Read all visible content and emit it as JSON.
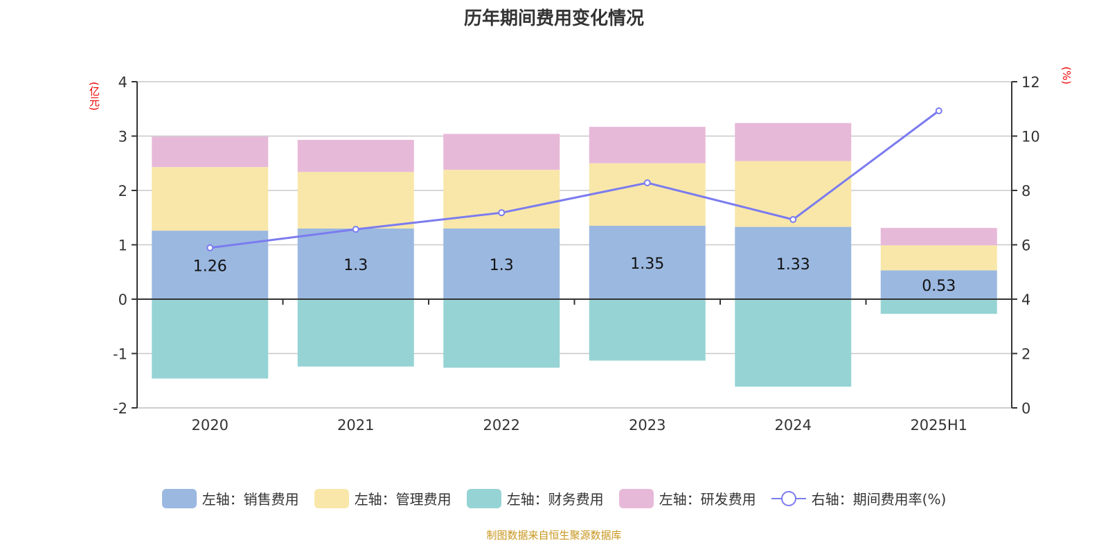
{
  "chart_data": {
    "type": "bar",
    "title": "历年期间费用变化情况",
    "categories": [
      "2020",
      "2021",
      "2022",
      "2023",
      "2024",
      "2025H1"
    ],
    "left_axis": {
      "unit": "(亿元)",
      "range": [
        -2,
        4
      ],
      "ticks": [
        "-2",
        "-1",
        "0",
        "1",
        "2",
        "3",
        "4"
      ]
    },
    "right_axis": {
      "unit": "(%)",
      "range": [
        0,
        12
      ],
      "ticks": [
        "0",
        "2",
        "4",
        "6",
        "8",
        "10",
        "12"
      ]
    },
    "grid": true,
    "legend_position": "bottom",
    "series": [
      {
        "name": "左轴：销售费用",
        "axis": "left",
        "stack": true,
        "color": "#9bb8e0",
        "values": [
          1.26,
          1.3,
          1.3,
          1.35,
          1.33,
          0.53
        ],
        "labels": [
          "1.26",
          "1.3",
          "1.3",
          "1.35",
          "1.33",
          "0.53"
        ]
      },
      {
        "name": "左轴：管理费用",
        "axis": "left",
        "stack": true,
        "color": "#f8e7a9",
        "values": [
          1.17,
          1.04,
          1.08,
          1.15,
          1.21,
          0.46
        ]
      },
      {
        "name": "左轴：财务费用",
        "axis": "left",
        "stack": true,
        "color": "#96d3d4",
        "values": [
          -1.46,
          -1.24,
          -1.26,
          -1.13,
          -1.61,
          -0.27
        ]
      },
      {
        "name": "左轴：研发费用",
        "axis": "left",
        "stack": true,
        "color": "#e7b9d8",
        "values": [
          0.56,
          0.59,
          0.66,
          0.67,
          0.7,
          0.32
        ]
      },
      {
        "name": "右轴：期间费用率(%)",
        "axis": "right",
        "type": "line",
        "color": "#7b7bef",
        "values": [
          5.89,
          6.57,
          7.18,
          8.28,
          6.93,
          10.93
        ]
      }
    ]
  },
  "footer": "制图数据来自恒生聚源数据库"
}
